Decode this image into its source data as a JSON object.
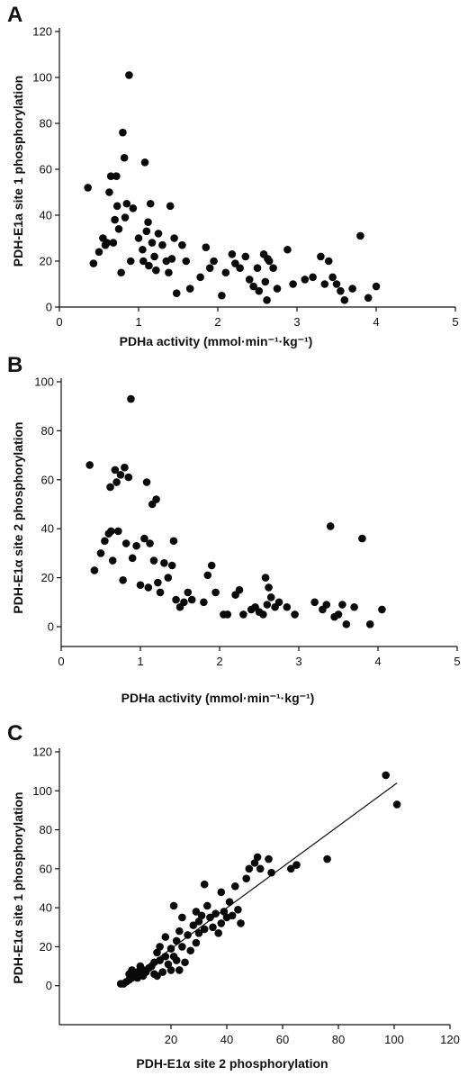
{
  "chart_data": [
    {
      "panel": "A",
      "type": "scatter",
      "xlabel": "PDHa activity (mmol·min⁻¹·kg⁻¹)",
      "ylabel": "PDH-E1a site 1 phosphorylation",
      "xlim": [
        0,
        5
      ],
      "ylim": [
        0,
        120
      ],
      "xticks": [
        "0",
        "1",
        "2",
        "3",
        "4",
        "5"
      ],
      "yticks": [
        "0",
        "20",
        "40",
        "60",
        "80",
        "100",
        "120"
      ],
      "points": [
        [
          0.36,
          52
        ],
        [
          0.43,
          19
        ],
        [
          0.5,
          24
        ],
        [
          0.55,
          30
        ],
        [
          0.58,
          27
        ],
        [
          0.6,
          28
        ],
        [
          0.63,
          50
        ],
        [
          0.65,
          57
        ],
        [
          0.68,
          28
        ],
        [
          0.7,
          38
        ],
        [
          0.72,
          57
        ],
        [
          0.73,
          44
        ],
        [
          0.75,
          34
        ],
        [
          0.78,
          15
        ],
        [
          0.8,
          76
        ],
        [
          0.82,
          65
        ],
        [
          0.83,
          39
        ],
        [
          0.85,
          45
        ],
        [
          0.88,
          101
        ],
        [
          0.9,
          20
        ],
        [
          0.93,
          43
        ],
        [
          1.0,
          30
        ],
        [
          1.05,
          25
        ],
        [
          1.06,
          20
        ],
        [
          1.08,
          63
        ],
        [
          1.1,
          33
        ],
        [
          1.12,
          37
        ],
        [
          1.13,
          18
        ],
        [
          1.15,
          45
        ],
        [
          1.17,
          28
        ],
        [
          1.2,
          22
        ],
        [
          1.22,
          16
        ],
        [
          1.25,
          32
        ],
        [
          1.3,
          27
        ],
        [
          1.35,
          20
        ],
        [
          1.38,
          15
        ],
        [
          1.4,
          44
        ],
        [
          1.42,
          21
        ],
        [
          1.45,
          30
        ],
        [
          1.48,
          6
        ],
        [
          1.55,
          27
        ],
        [
          1.6,
          20
        ],
        [
          1.65,
          8
        ],
        [
          1.78,
          13
        ],
        [
          1.85,
          26
        ],
        [
          1.9,
          17
        ],
        [
          1.95,
          20
        ],
        [
          2.05,
          5
        ],
        [
          2.1,
          15
        ],
        [
          2.18,
          23
        ],
        [
          2.22,
          19
        ],
        [
          2.28,
          17
        ],
        [
          2.35,
          22
        ],
        [
          2.4,
          12
        ],
        [
          2.45,
          9
        ],
        [
          2.5,
          17
        ],
        [
          2.52,
          7
        ],
        [
          2.58,
          23
        ],
        [
          2.6,
          11
        ],
        [
          2.62,
          3
        ],
        [
          2.63,
          21
        ],
        [
          2.65,
          20
        ],
        [
          2.7,
          17
        ],
        [
          2.75,
          8
        ],
        [
          2.88,
          25
        ],
        [
          2.95,
          10
        ],
        [
          3.1,
          12
        ],
        [
          3.2,
          13
        ],
        [
          3.3,
          22
        ],
        [
          3.35,
          10
        ],
        [
          3.4,
          20
        ],
        [
          3.45,
          13
        ],
        [
          3.5,
          10
        ],
        [
          3.55,
          7
        ],
        [
          3.6,
          3
        ],
        [
          3.7,
          8
        ],
        [
          3.8,
          31
        ],
        [
          3.9,
          4
        ],
        [
          4.0,
          9
        ]
      ]
    },
    {
      "panel": "B",
      "type": "scatter",
      "xlabel": "PDHa activity (mmol·min⁻¹·kg⁻¹)",
      "ylabel": "PDH-E1α site 2 phosphorylation",
      "xlim": [
        0,
        5
      ],
      "ylim": [
        0,
        100
      ],
      "xticks": [
        "0",
        "1",
        "2",
        "3",
        "4",
        "5"
      ],
      "yticks": [
        "0",
        "20",
        "40",
        "60",
        "80",
        "100"
      ],
      "points": [
        [
          0.36,
          66
        ],
        [
          0.42,
          23
        ],
        [
          0.5,
          30
        ],
        [
          0.55,
          35
        ],
        [
          0.6,
          38
        ],
        [
          0.62,
          57
        ],
        [
          0.63,
          39
        ],
        [
          0.65,
          27
        ],
        [
          0.68,
          64
        ],
        [
          0.7,
          59
        ],
        [
          0.72,
          39
        ],
        [
          0.75,
          62
        ],
        [
          0.78,
          19
        ],
        [
          0.8,
          65
        ],
        [
          0.82,
          34
        ],
        [
          0.85,
          61
        ],
        [
          0.88,
          93
        ],
        [
          0.9,
          28
        ],
        [
          0.95,
          33
        ],
        [
          1.0,
          17
        ],
        [
          1.05,
          36
        ],
        [
          1.08,
          59
        ],
        [
          1.1,
          16
        ],
        [
          1.12,
          34
        ],
        [
          1.15,
          50
        ],
        [
          1.17,
          27
        ],
        [
          1.2,
          52
        ],
        [
          1.22,
          18
        ],
        [
          1.25,
          14
        ],
        [
          1.3,
          26
        ],
        [
          1.35,
          20
        ],
        [
          1.4,
          25
        ],
        [
          1.42,
          35
        ],
        [
          1.45,
          11
        ],
        [
          1.5,
          8
        ],
        [
          1.55,
          10
        ],
        [
          1.6,
          14
        ],
        [
          1.65,
          11
        ],
        [
          1.8,
          10
        ],
        [
          1.85,
          21
        ],
        [
          1.9,
          25
        ],
        [
          1.95,
          14
        ],
        [
          2.05,
          5
        ],
        [
          2.1,
          5
        ],
        [
          2.2,
          13
        ],
        [
          2.25,
          15
        ],
        [
          2.3,
          5
        ],
        [
          2.4,
          7
        ],
        [
          2.45,
          8
        ],
        [
          2.5,
          6
        ],
        [
          2.55,
          5
        ],
        [
          2.58,
          20
        ],
        [
          2.6,
          9
        ],
        [
          2.62,
          16
        ],
        [
          2.65,
          12
        ],
        [
          2.7,
          8
        ],
        [
          2.75,
          10
        ],
        [
          2.85,
          8
        ],
        [
          2.95,
          5
        ],
        [
          3.2,
          10
        ],
        [
          3.3,
          7
        ],
        [
          3.35,
          9
        ],
        [
          3.4,
          41
        ],
        [
          3.45,
          4
        ],
        [
          3.5,
          5
        ],
        [
          3.55,
          9
        ],
        [
          3.6,
          1
        ],
        [
          3.7,
          8
        ],
        [
          3.8,
          36
        ],
        [
          3.9,
          1
        ],
        [
          4.05,
          7
        ]
      ]
    },
    {
      "panel": "C",
      "type": "scatter",
      "xlabel": "PDH-E1α site 2 phosphorylation",
      "ylabel": "PDH-E1α site 1 phosphorylation",
      "xlim": [
        -20,
        120
      ],
      "ylim": [
        -20,
        120
      ],
      "xticks": [
        "20",
        "40",
        "60",
        "80",
        "100",
        "120"
      ],
      "yticks": [
        "0",
        "20",
        "40",
        "60",
        "80",
        "100",
        "120"
      ],
      "fit_line": [
        [
          2,
          0
        ],
        [
          101,
          104
        ]
      ],
      "points": [
        [
          2,
          1
        ],
        [
          3,
          1
        ],
        [
          4,
          2
        ],
        [
          5,
          3
        ],
        [
          5,
          6
        ],
        [
          6,
          8
        ],
        [
          6,
          4
        ],
        [
          7,
          5
        ],
        [
          8,
          7
        ],
        [
          8,
          4
        ],
        [
          9,
          10
        ],
        [
          9,
          6
        ],
        [
          10,
          8
        ],
        [
          10,
          5
        ],
        [
          11,
          7
        ],
        [
          12,
          9
        ],
        [
          13,
          10
        ],
        [
          14,
          12
        ],
        [
          14,
          6
        ],
        [
          15,
          17
        ],
        [
          15,
          5
        ],
        [
          16,
          20
        ],
        [
          16,
          13
        ],
        [
          17,
          7
        ],
        [
          18,
          25
        ],
        [
          18,
          15
        ],
        [
          19,
          11
        ],
        [
          20,
          19
        ],
        [
          20,
          8
        ],
        [
          21,
          41
        ],
        [
          21,
          15
        ],
        [
          22,
          23
        ],
        [
          22,
          13
        ],
        [
          23,
          28
        ],
        [
          23,
          8
        ],
        [
          24,
          35
        ],
        [
          24,
          20
        ],
        [
          25,
          12
        ],
        [
          26,
          26
        ],
        [
          27,
          18
        ],
        [
          28,
          31
        ],
        [
          29,
          38
        ],
        [
          29,
          22
        ],
        [
          30,
          33
        ],
        [
          30,
          27
        ],
        [
          31,
          36
        ],
        [
          32,
          52
        ],
        [
          32,
          29
        ],
        [
          33,
          41
        ],
        [
          34,
          35
        ],
        [
          35,
          30
        ],
        [
          36,
          37
        ],
        [
          37,
          27
        ],
        [
          38,
          48
        ],
        [
          38,
          32
        ],
        [
          39,
          38
        ],
        [
          40,
          35
        ],
        [
          41,
          43
        ],
        [
          42,
          36
        ],
        [
          43,
          51
        ],
        [
          44,
          39
        ],
        [
          45,
          32
        ],
        [
          47,
          55
        ],
        [
          48,
          60
        ],
        [
          50,
          63
        ],
        [
          51,
          66
        ],
        [
          52,
          60
        ],
        [
          55,
          65
        ],
        [
          56,
          58
        ],
        [
          63,
          60
        ],
        [
          65,
          62
        ],
        [
          76,
          65
        ],
        [
          97,
          108
        ],
        [
          101,
          93
        ]
      ]
    }
  ]
}
